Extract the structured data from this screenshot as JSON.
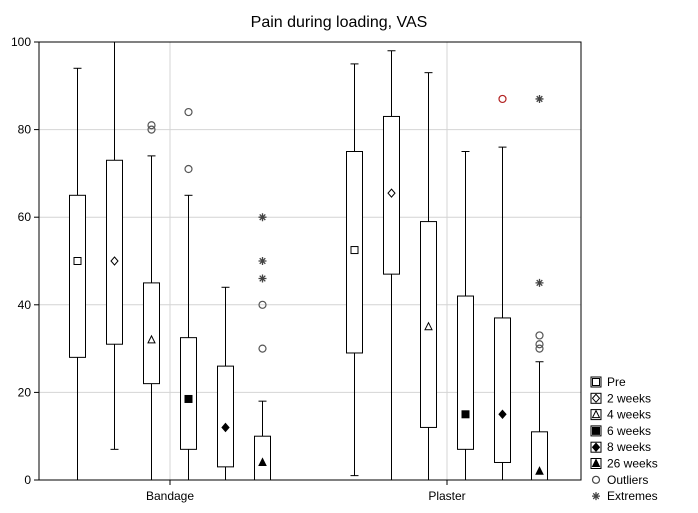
{
  "chart_data": {
    "type": "box",
    "title": "Pain during loading, VAS",
    "xlabel": "",
    "ylabel": "",
    "ylim": [
      0,
      100
    ],
    "yticks": [
      0,
      20,
      40,
      60,
      80,
      100
    ],
    "grid": true,
    "legend_position": "bottom-right",
    "categories": [
      "Bandage",
      "Plaster"
    ],
    "legend": [
      "Pre",
      "2 weeks",
      "4 weeks",
      "6 weeks",
      "8 weeks",
      "26 weeks",
      "Outliers",
      "Extremes"
    ],
    "series": [
      {
        "name": "Pre",
        "marker": "square-open",
        "values": [
          {
            "median": 50,
            "q1": 28,
            "q3": 65,
            "min": 0,
            "max": 94,
            "outliers": [],
            "extremes": []
          },
          {
            "median": 52.5,
            "q1": 29,
            "q3": 75,
            "min": 1,
            "max": 95,
            "outliers": [],
            "extremes": []
          }
        ]
      },
      {
        "name": "2 weeks",
        "marker": "diamond-open",
        "values": [
          {
            "median": 50,
            "q1": 31,
            "q3": 73,
            "min": 7,
            "max": 100,
            "outliers": [],
            "extremes": []
          },
          {
            "median": 65.5,
            "q1": 47,
            "q3": 83,
            "min": 0,
            "max": 98,
            "outliers": [],
            "extremes": []
          }
        ]
      },
      {
        "name": "4 weeks",
        "marker": "triangle-open",
        "values": [
          {
            "median": 32,
            "q1": 22,
            "q3": 45,
            "min": 0,
            "max": 74,
            "outliers": [
              80,
              81
            ],
            "extremes": []
          },
          {
            "median": 35,
            "q1": 12,
            "q3": 59,
            "min": 0,
            "max": 93,
            "outliers": [],
            "extremes": []
          }
        ]
      },
      {
        "name": "6 weeks",
        "marker": "square-filled",
        "values": [
          {
            "median": 18.5,
            "q1": 7,
            "q3": 32.5,
            "min": 0,
            "max": 65,
            "outliers": [
              71,
              84
            ],
            "extremes": []
          },
          {
            "median": 15,
            "q1": 7,
            "q3": 42,
            "min": 0,
            "max": 75,
            "outliers": [],
            "extremes": []
          }
        ]
      },
      {
        "name": "8 weeks",
        "marker": "diamond-filled",
        "values": [
          {
            "median": 12,
            "q1": 3,
            "q3": 26,
            "min": 0,
            "max": 44,
            "outliers": [],
            "extremes": []
          },
          {
            "median": 15,
            "q1": 4,
            "q3": 37,
            "min": 0,
            "max": 76,
            "outliers": [
              87
            ],
            "extremes": []
          }
        ]
      },
      {
        "name": "26 weeks",
        "marker": "triangle-filled",
        "values": [
          {
            "median": 4,
            "q1": 0,
            "q3": 10,
            "min": 0,
            "max": 18,
            "outliers": [
              30,
              40
            ],
            "extremes": [
              46,
              50,
              60
            ]
          },
          {
            "median": 2,
            "q1": 0,
            "q3": 11,
            "min": 0,
            "max": 27,
            "outliers": [
              30,
              31,
              33
            ],
            "extremes": [
              45,
              87
            ]
          }
        ]
      }
    ]
  }
}
